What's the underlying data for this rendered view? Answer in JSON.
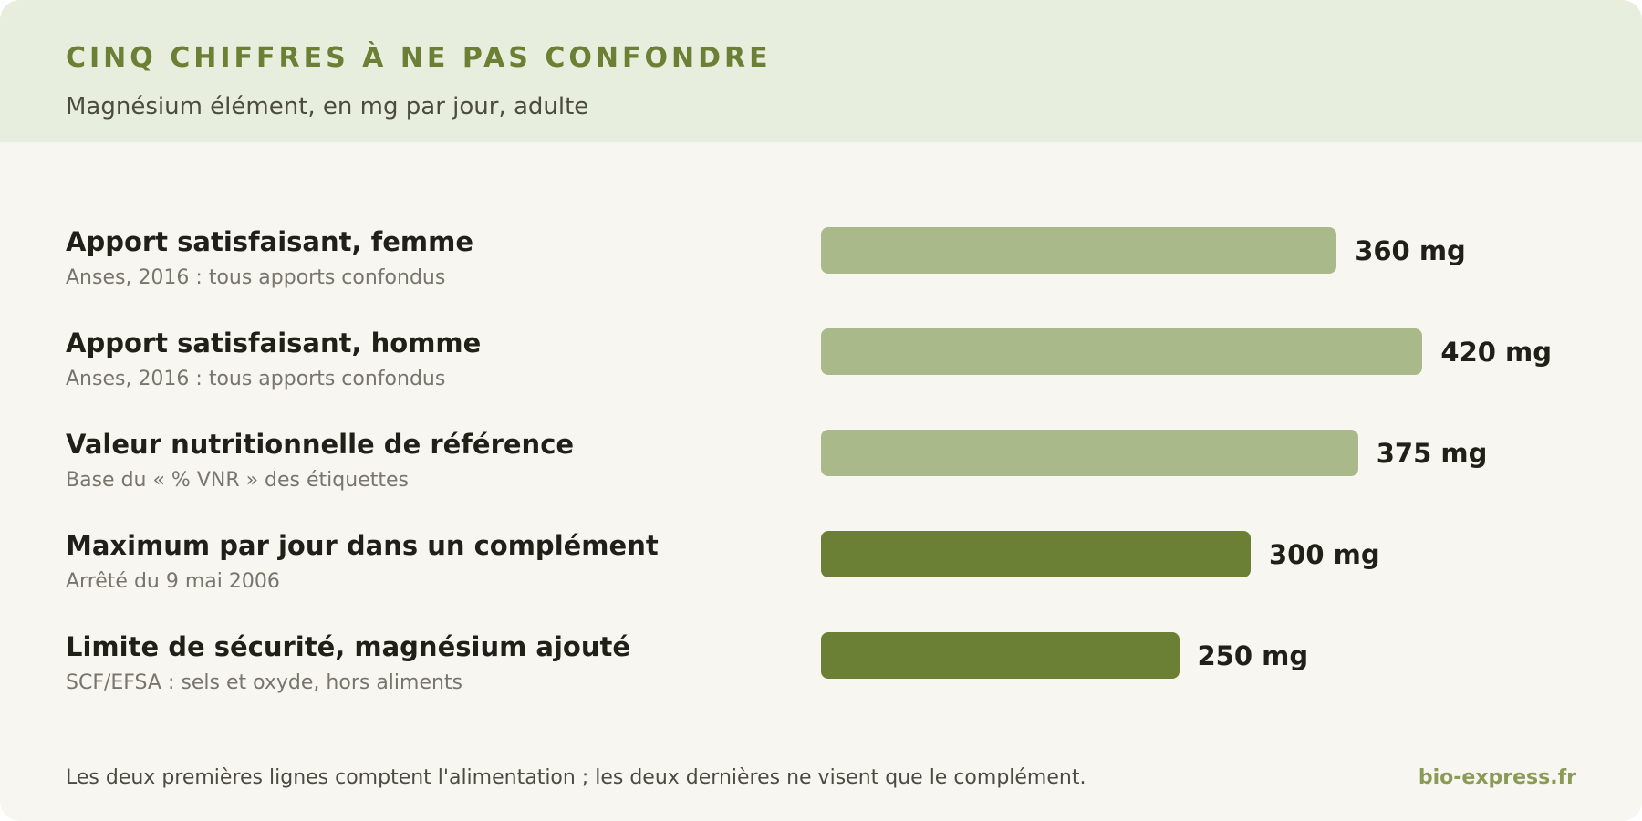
{
  "header": {
    "title": "CINQ CHIFFRES À NE PAS CONFONDRE",
    "subtitle": "Magnésium élément, en mg par jour, adulte"
  },
  "colors": {
    "accent": "#6b7f35",
    "bar_light": "#aab98a",
    "bar_dark": "#6b7f35",
    "brand": "#8a9b58"
  },
  "chart_data": {
    "type": "bar",
    "orientation": "horizontal",
    "unit": "mg",
    "title": "CINQ CHIFFRES À NE PAS CONFONDRE",
    "subtitle": "Magnésium élément, en mg par jour, adulte",
    "xlim": [
      0,
      500
    ],
    "grid": false,
    "categories": [
      "Apport satisfaisant, femme",
      "Apport satisfaisant, homme",
      "Valeur nutritionnelle de référence",
      "Maximum par jour dans un complément",
      "Limite de sécurité, magnésium ajouté"
    ],
    "sources": [
      "Anses, 2016 : tous apports confondus",
      "Anses, 2016 : tous apports confondus",
      "Base du « % VNR » des étiquettes",
      "Arrêté du 9 mai 2006",
      "SCF/EFSA : sels et oxyde, hors aliments"
    ],
    "values": [
      360,
      420,
      375,
      300,
      250
    ],
    "value_labels": [
      "360 mg",
      "420 mg",
      "375 mg",
      "300 mg",
      "250 mg"
    ],
    "bar_colors": [
      "#aab98a",
      "#aab98a",
      "#aab98a",
      "#6b7f35",
      "#6b7f35"
    ]
  },
  "footer": {
    "note": "Les deux premières lignes comptent l'alimentation ; les deux dernières ne visent que le complément.",
    "brand": "bio-express.fr"
  }
}
